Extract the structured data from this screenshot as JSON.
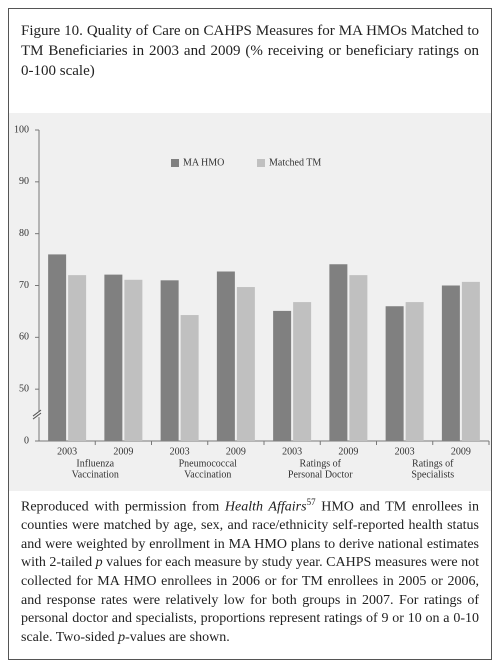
{
  "title": "Figure 10. Quality of Care on CAHPS Measures for MA HMOs Matched to TM Beneficiaries in 2003 and 2009 (% receiving or beneficiary ratings on 0-100 scale)",
  "chart_data": {
    "type": "bar",
    "categories": [
      "2003",
      "2009",
      "2003",
      "2009",
      "2003",
      "2009",
      "2003",
      "2009"
    ],
    "group_labels": [
      [
        "Influenza",
        "Vaccination"
      ],
      [
        "Pneumococcal",
        "Vaccination"
      ],
      [
        "Ratings of",
        "Personal Doctor"
      ],
      [
        "Ratings of",
        "Specialists"
      ]
    ],
    "series": [
      {
        "name": "MA HMO",
        "color": "#808080",
        "values": [
          76,
          72.1,
          71,
          72.7,
          65.1,
          74.1,
          66,
          70
        ]
      },
      {
        "name": "Matched TM",
        "color": "#c0c0c0",
        "values": [
          72,
          71.1,
          64.3,
          69.7,
          66.8,
          72,
          66.8,
          70.7
        ]
      }
    ],
    "ylim": [
      40,
      100
    ],
    "yticks": [
      50,
      60,
      70,
      80,
      90,
      100
    ],
    "axis_break": {
      "value": 0
    },
    "grid": false,
    "legend": "top"
  },
  "caption": [
    "Reproduced with permission from ",
    "Health Affairs",
    "57",
    " HMO and TM enrollees in counties were matched by age, sex, and race/ethnicity self-reported health status and were weighted by enrollment in MA HMO plans to derive national estimates with 2-tailed ",
    "p",
    " values for each measure by study year. CAHPS measures were not collected for MA HMO enrollees in 2006 or for TM enrollees in 2005 or 2006, and response rates were relatively low for both groups in 2007. For ratings of personal doctor and specialists, proportions represent ratings of 9 or 10 on a 0-10 scale. Two-sided ",
    "p",
    "-values are shown."
  ]
}
